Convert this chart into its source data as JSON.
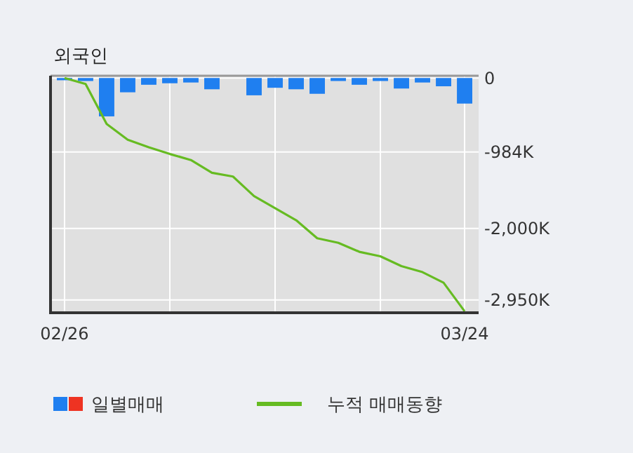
{
  "chart_data": {
    "type": "bar",
    "title": "외국인",
    "categories": [
      "02/26",
      null,
      null,
      null,
      null,
      null,
      null,
      null,
      null,
      null,
      null,
      null,
      null,
      null,
      null,
      null,
      null,
      null,
      null,
      "03/24"
    ],
    "series": [
      {
        "name": "일별매매",
        "color": "#1f7ff0",
        "values": [
          -30000,
          -40000,
          -510000,
          -190000,
          -90000,
          -70000,
          -60000,
          -150000,
          0,
          -230000,
          -130000,
          -150000,
          -210000,
          -40000,
          -90000,
          -40000,
          -140000,
          -60000,
          -110000,
          -340000
        ]
      },
      {
        "name": "누적 매매동향",
        "type": "line",
        "color": "#66bb22",
        "values": [
          0,
          -80000,
          -610000,
          -820000,
          -920000,
          -1010000,
          -1090000,
          -1260000,
          -1310000,
          -1570000,
          -1730000,
          -1890000,
          -2130000,
          -2190000,
          -2310000,
          -2370000,
          -2500000,
          -2580000,
          -2720000,
          -3100000
        ]
      }
    ],
    "ylim": [
      -3120000,
      30000
    ],
    "yticks": [
      0,
      {
        "value": -984000,
        "label": "-984K"
      },
      {
        "value": -2000000,
        "label": "-2,000K"
      },
      {
        "value": -2950000,
        "label": "-2,950K"
      }
    ],
    "grid": true,
    "legend": "bottom"
  }
}
